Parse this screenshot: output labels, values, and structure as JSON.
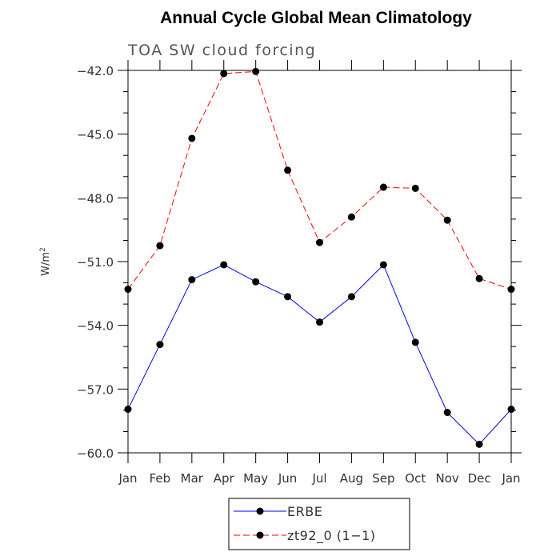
{
  "chart_data": {
    "type": "line",
    "title": "Annual Cycle Global Mean Climatology",
    "subtitle": "TOA SW cloud forcing",
    "ylabel": "W/m",
    "ylabel_sup": "2",
    "xlabel": "",
    "categories": [
      "Jan",
      "Feb",
      "Mar",
      "Apr",
      "May",
      "Jun",
      "Jul",
      "Aug",
      "Sep",
      "Oct",
      "Nov",
      "Dec",
      "Jan"
    ],
    "ylim": [
      -60.0,
      -42.0
    ],
    "yticks": [
      -42.0,
      -45.0,
      -48.0,
      -51.0,
      -54.0,
      -57.0,
      -60.0
    ],
    "ytick_labels": [
      "−42.0",
      "−45.0",
      "−48.0",
      "−51.0",
      "−54.0",
      "−57.0",
      "−60.0"
    ],
    "grid": false,
    "legend_position": "bottom-center",
    "series": [
      {
        "name": "ERBE",
        "color": "#0000ff",
        "line_style": "solid",
        "marker": "filled-circle",
        "values": [
          -57.95,
          -54.9,
          -51.85,
          -51.15,
          -51.95,
          -52.65,
          -53.85,
          -52.65,
          -51.15,
          -54.8,
          -58.1,
          -59.6,
          -57.95
        ]
      },
      {
        "name": "zt92_0 (1−1)",
        "color": "#ff0000",
        "line_style": "dashed",
        "marker": "filled-circle",
        "values": [
          -52.3,
          -50.25,
          -45.2,
          -42.15,
          -42.05,
          -46.7,
          -50.1,
          -48.9,
          -47.5,
          -47.55,
          -49.05,
          -51.8,
          -52.3
        ]
      }
    ]
  }
}
